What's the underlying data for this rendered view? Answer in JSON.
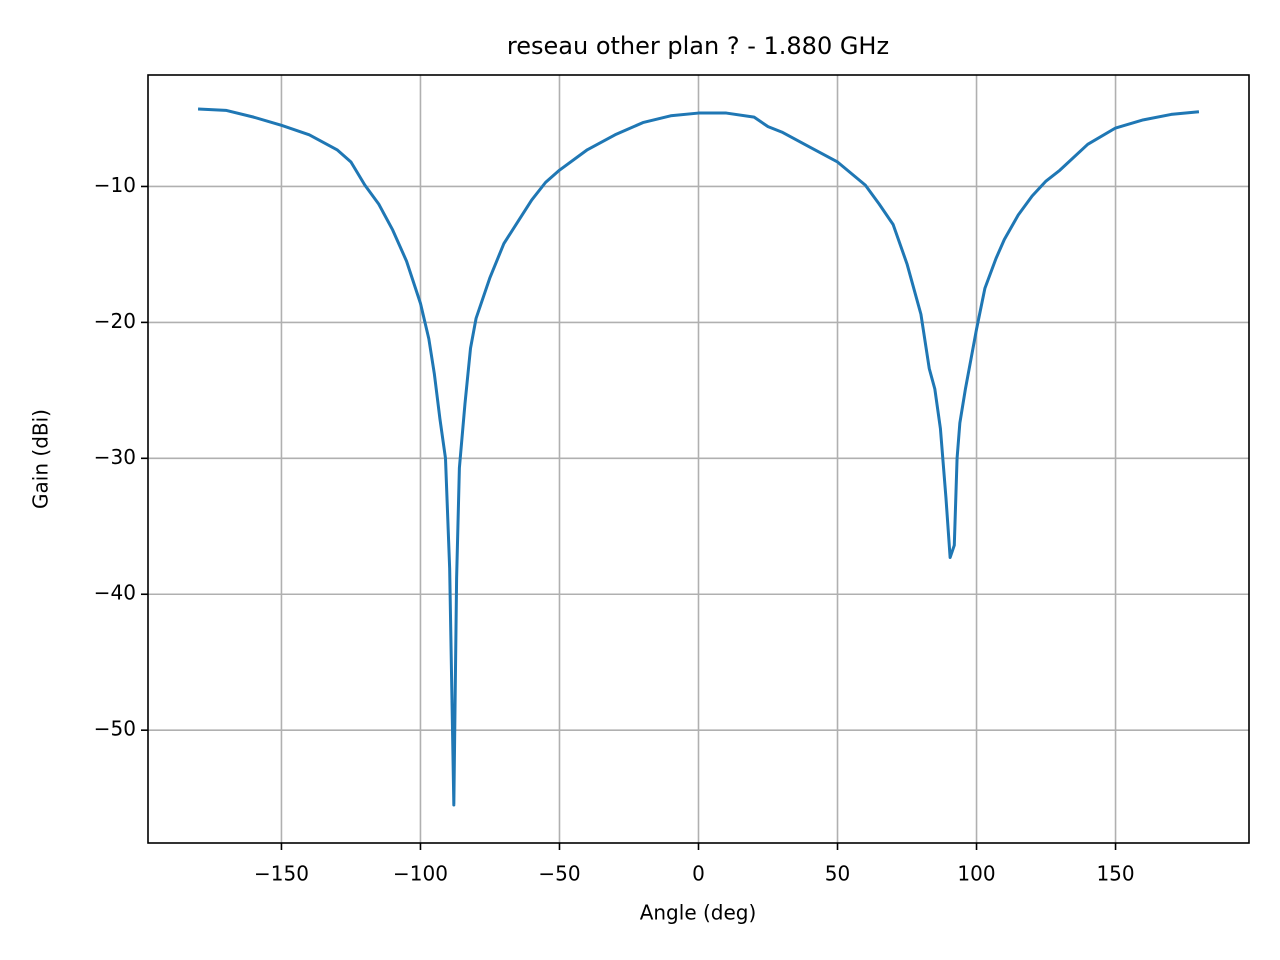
{
  "chart_data": {
    "type": "line",
    "title": "reseau other plan ? - 1.880 GHz",
    "x_label": "Angle (deg)",
    "y_label": "Gain (dBi)",
    "x": [
      -180,
      -170,
      -160,
      -150,
      -140,
      -130,
      -125,
      -120,
      -115,
      -110,
      -105,
      -100,
      -97,
      -95,
      -93,
      -91,
      -89.5,
      -88,
      -87,
      -86,
      -84,
      -82,
      -80,
      -75,
      -70,
      -65,
      -60,
      -55,
      -50,
      -40,
      -30,
      -20,
      -10,
      0,
      10,
      20,
      25,
      30,
      40,
      50,
      60,
      65,
      70,
      75,
      80,
      83,
      85,
      87,
      89,
      90.5,
      92,
      93,
      94,
      96,
      98,
      100,
      103,
      107,
      110,
      115,
      120,
      125,
      130,
      140,
      150,
      160,
      170,
      180
    ],
    "series": [
      {
        "name": "gain",
        "color": "#1f77b4",
        "values": [
          -4.3,
          -4.4,
          -4.9,
          -5.5,
          -6.2,
          -7.3,
          -8.2,
          -9.9,
          -11.3,
          -13.2,
          -15.5,
          -18.6,
          -21.2,
          -23.8,
          -27.1,
          -30.0,
          -38.1,
          -55.5,
          -38.8,
          -30.7,
          -26.0,
          -21.9,
          -19.7,
          -16.7,
          -14.2,
          -12.6,
          -11.0,
          -9.7,
          -8.8,
          -7.3,
          -6.2,
          -5.3,
          -4.8,
          -4.6,
          -4.6,
          -4.9,
          -5.6,
          -6.0,
          -7.1,
          -8.2,
          -9.9,
          -11.3,
          -12.8,
          -15.7,
          -19.4,
          -23.4,
          -24.9,
          -27.8,
          -32.9,
          -37.3,
          -36.4,
          -30.0,
          -27.4,
          -24.9,
          -22.7,
          -20.5,
          -17.5,
          -15.3,
          -13.9,
          -12.1,
          -10.7,
          -9.6,
          -8.8,
          -6.9,
          -5.7,
          -5.1,
          -4.7,
          -4.5
        ]
      }
    ],
    "xlim": [
      -198,
      198
    ],
    "ylim": [
      -58.3,
      -1.8
    ],
    "xticks": [
      {
        "value": -150,
        "label": "−150"
      },
      {
        "value": -100,
        "label": "−100"
      },
      {
        "value": -50,
        "label": "−50"
      },
      0,
      50,
      100,
      150
    ],
    "yticks": [
      {
        "value": -50,
        "label": "−50"
      },
      {
        "value": -40,
        "label": "−40"
      },
      {
        "value": -30,
        "label": "−30"
      },
      {
        "value": -20,
        "label": "−20"
      },
      {
        "value": -10,
        "label": "−10"
      }
    ],
    "grid": true
  }
}
